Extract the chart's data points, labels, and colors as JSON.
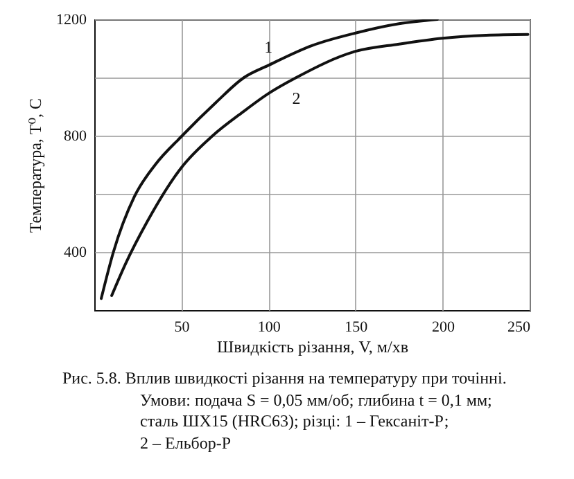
{
  "chart_data": {
    "type": "line",
    "xlabel": "Швидкість різання, V, м/хв",
    "ylabel": "Температура, T⁰, C",
    "xlim": [
      0,
      250
    ],
    "xticks": [
      50,
      100,
      150,
      200,
      250
    ],
    "ylim": [
      200,
      1200
    ],
    "yticks": [
      400,
      {
        "value": 600,
        "label": null
      },
      800,
      {
        "value": 1000,
        "label": null
      },
      1200
    ],
    "grid": true,
    "line_style": "solid",
    "series": [
      {
        "name": "1",
        "color": "#111111",
        "x": [
          4,
          11,
          23,
          35,
          50,
          70,
          86,
          100,
          125,
          150,
          175,
          197
        ],
        "values": [
          240,
          400,
          590,
          700,
          797,
          915,
          1000,
          1042,
          1110,
          1153,
          1185,
          1200
        ]
      },
      {
        "name": "2",
        "color": "#111111",
        "x": [
          10,
          18,
          30,
          50,
          68,
          85,
          100,
          116,
          150,
          175,
          200,
          225,
          249
        ],
        "values": [
          250,
          360,
          500,
          690,
          800,
          880,
          945,
          1000,
          1090,
          1115,
          1135,
          1145,
          1148
        ]
      }
    ],
    "annotations": [
      "Рис. 5.8. Вплив швидкості різання на температуру при точінні.",
      "Умови: подача S = 0,05 мм/об; глибина t = 0,1 мм;",
      "сталь ШХ15 (HRC63); різці: 1 – Гексаніт-Р;",
      "2 – Ельбор-Р"
    ]
  }
}
